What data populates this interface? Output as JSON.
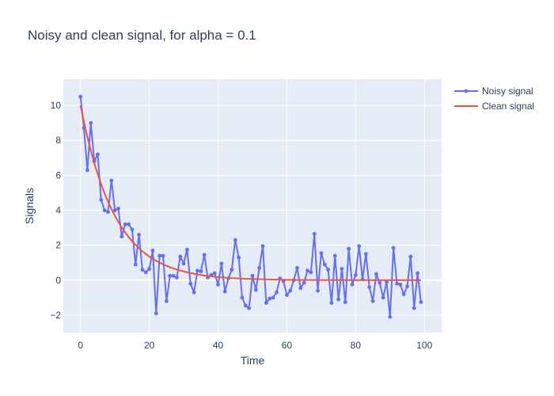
{
  "chart_data": {
    "type": "line",
    "title": "Noisy and clean signal, for alpha = 0.1",
    "xlabel": "Time",
    "ylabel": "Signals",
    "xlim": [
      -5,
      105
    ],
    "ylim": [
      -3,
      11.5
    ],
    "x_ticks": [
      0,
      20,
      40,
      60,
      80,
      100
    ],
    "y_ticks": [
      -2,
      0,
      2,
      4,
      6,
      8,
      10
    ],
    "x_tick_labels": [
      "0",
      "20",
      "40",
      "60",
      "80",
      "100"
    ],
    "y_tick_labels": [
      "−2",
      "0",
      "2",
      "4",
      "6",
      "8",
      "10"
    ],
    "grid": true,
    "legend_position": "top-right",
    "colors": {
      "plot_bg": "#e5ecf6",
      "grid": "#ffffff",
      "noisy": "#636efa",
      "clean": "#ef553b"
    },
    "series": [
      {
        "name": "Noisy signal",
        "mode": "lines+markers",
        "x": [
          0,
          1,
          2,
          3,
          4,
          5,
          6,
          7,
          8,
          9,
          10,
          11,
          12,
          13,
          14,
          15,
          16,
          17,
          18,
          19,
          20,
          21,
          22,
          23,
          24,
          25,
          26,
          27,
          28,
          29,
          30,
          31,
          32,
          33,
          34,
          35,
          36,
          37,
          38,
          39,
          40,
          41,
          42,
          43,
          44,
          45,
          46,
          47,
          48,
          49,
          50,
          51,
          52,
          53,
          54,
          55,
          56,
          57,
          58,
          59,
          60,
          61,
          62,
          63,
          64,
          65,
          66,
          67,
          68,
          69,
          70,
          71,
          72,
          73,
          74,
          75,
          76,
          77,
          78,
          79,
          80,
          81,
          82,
          83,
          84,
          85,
          86,
          87,
          88,
          89,
          90,
          91,
          92,
          93,
          94,
          95,
          96,
          97,
          98,
          99
        ],
        "y": [
          10.5,
          8.7,
          6.3,
          9.0,
          6.8,
          7.2,
          4.6,
          4.0,
          3.9,
          5.7,
          4.0,
          4.1,
          2.5,
          3.2,
          3.2,
          2.9,
          0.9,
          2.6,
          0.6,
          0.45,
          0.65,
          1.7,
          -1.9,
          1.4,
          1.4,
          -1.2,
          0.25,
          0.25,
          0.15,
          1.35,
          0.95,
          1.75,
          -0.2,
          -0.7,
          0.55,
          0.5,
          1.45,
          0.15,
          0.3,
          0.4,
          -0.25,
          0.95,
          -0.65,
          0.1,
          0.6,
          2.3,
          1.3,
          -1.0,
          -1.45,
          -1.6,
          0.25,
          -0.55,
          0.7,
          1.95,
          -1.3,
          -1.05,
          -1.0,
          -0.7,
          0.1,
          -0.05,
          -0.85,
          -0.6,
          0.0,
          0.7,
          -0.45,
          -0.15,
          0.55,
          0.45,
          2.65,
          -0.6,
          1.55,
          0.9,
          0.6,
          -1.3,
          1.4,
          -1.1,
          0.65,
          -1.25,
          1.8,
          -0.25,
          0.3,
          1.95,
          0.05,
          1.5,
          -0.4,
          -1.2,
          0.35,
          -0.15,
          -1.0,
          -0.1,
          -2.1,
          1.85,
          -0.2,
          -0.25,
          -0.8,
          -0.35,
          1.35,
          -1.6,
          0.4,
          -1.25
        ]
      },
      {
        "name": "Clean signal",
        "mode": "lines",
        "x": [
          0,
          1,
          2,
          3,
          4,
          5,
          6,
          7,
          8,
          9,
          10,
          11,
          12,
          13,
          14,
          15,
          16,
          17,
          18,
          19,
          20,
          22,
          24,
          26,
          28,
          30,
          32,
          34,
          36,
          38,
          40,
          42,
          44,
          46,
          48,
          50,
          55,
          60,
          65,
          70,
          75,
          80,
          85,
          90,
          95,
          99
        ],
        "y": [
          10.0,
          9.05,
          8.19,
          7.41,
          6.7,
          6.07,
          5.49,
          4.97,
          4.49,
          4.07,
          3.68,
          3.33,
          3.01,
          2.73,
          2.47,
          2.23,
          2.02,
          1.83,
          1.65,
          1.5,
          1.35,
          1.11,
          0.91,
          0.74,
          0.61,
          0.5,
          0.41,
          0.33,
          0.27,
          0.22,
          0.18,
          0.15,
          0.12,
          0.1,
          0.08,
          0.07,
          0.04,
          0.02,
          0.015,
          0.009,
          0.006,
          0.003,
          0.002,
          0.001,
          0.0007,
          0.0005
        ]
      }
    ]
  }
}
